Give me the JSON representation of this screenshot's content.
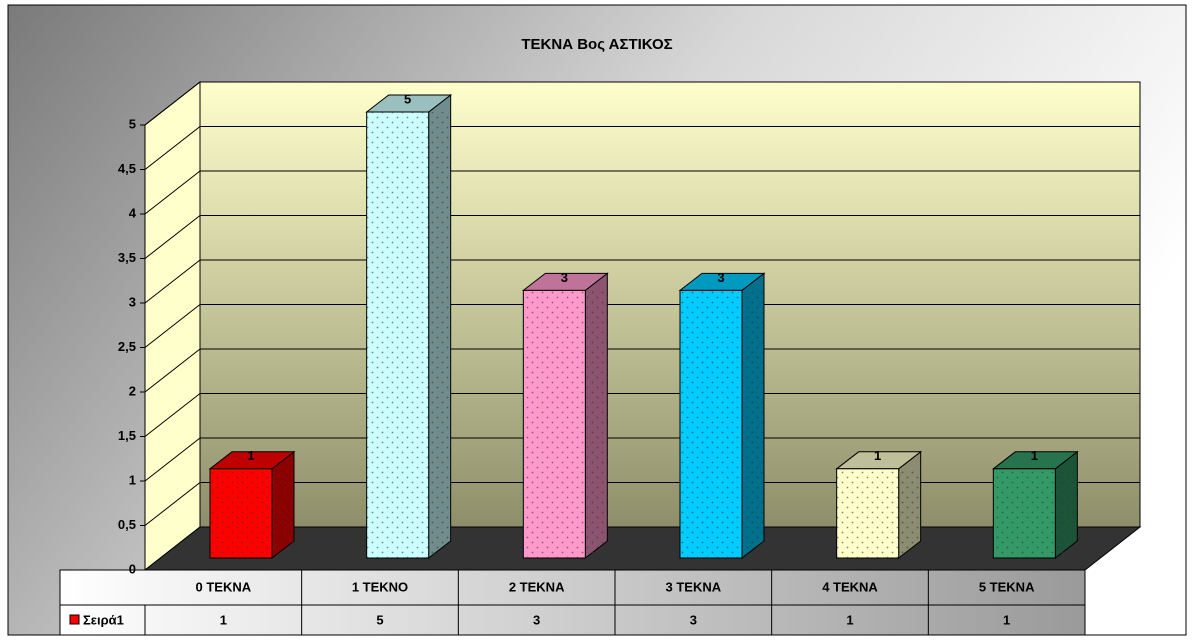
{
  "chart_data": {
    "type": "bar3d",
    "title": "ΤΕΚΝΑ Βος ΑΣΤΙΚΟΣ",
    "categories": [
      "0 ΤΕΚΝΑ",
      "1 ΤΕΚΝΟ",
      "2 ΤΕΚΝΑ",
      "3 ΤΕΚΝΑ",
      "4 ΤΕΚΝΑ",
      "5 ΤΕΚΝΑ"
    ],
    "series": [
      {
        "name": "Σειρά1",
        "color": "#ff0000",
        "values": [
          1,
          5,
          3,
          3,
          1,
          1
        ],
        "colors": [
          "#ff0000",
          "#ccffff",
          "#ff99cc",
          "#00ccff",
          "#ffffcc",
          "#339966"
        ]
      }
    ],
    "ylim": [
      0,
      5
    ],
    "yticks": [
      0,
      {
        "value": 0.5,
        "label": "0,5"
      },
      1,
      {
        "value": 1.5,
        "label": "1,5"
      },
      2,
      {
        "value": 2.5,
        "label": "2,5"
      },
      3,
      {
        "value": 3.5,
        "label": "3,5"
      },
      4,
      {
        "value": 4.5,
        "label": "4,5"
      },
      5
    ],
    "grid": true,
    "data_table": true
  }
}
